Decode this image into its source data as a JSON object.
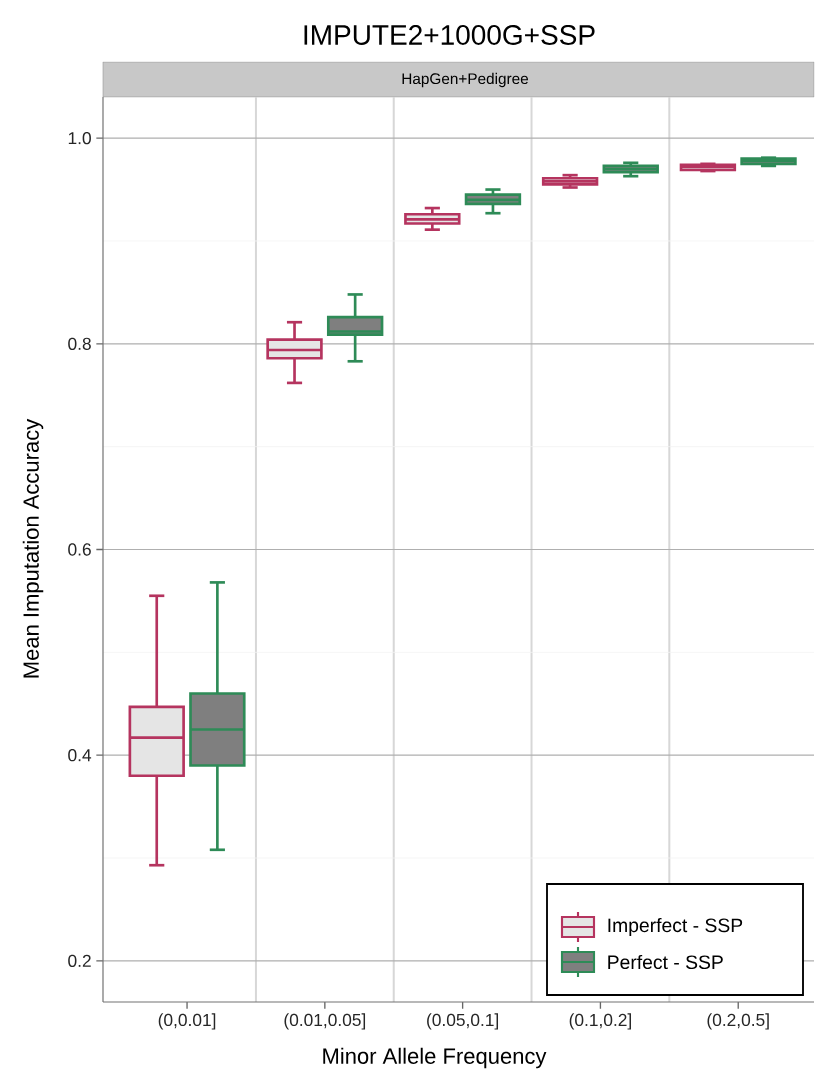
{
  "chart_data": {
    "type": "box",
    "title": "IMPUTE2+1000G+SSP",
    "subtitle": "HapGen+Pedigree",
    "xlabel": "Minor Allele Frequency",
    "ylabel": "Mean Imputation Accuracy",
    "categories": [
      "(0,0.01]",
      "(0.01,0.05]",
      "(0.05,0.1]",
      "(0.1,0.2]",
      "(0.2,0.5]"
    ],
    "series": [
      {
        "name": "Imperfect - SSP",
        "color": "#b5345f",
        "boxes": [
          {
            "low": 0.293,
            "q1": 0.38,
            "median": 0.417,
            "q3": 0.447,
            "high": 0.555
          },
          {
            "low": 0.762,
            "q1": 0.786,
            "median": 0.794,
            "q3": 0.804,
            "high": 0.821
          },
          {
            "low": 0.911,
            "q1": 0.917,
            "median": 0.921,
            "q3": 0.926,
            "high": 0.932
          },
          {
            "low": 0.952,
            "q1": 0.955,
            "median": 0.958,
            "q3": 0.961,
            "high": 0.964
          },
          {
            "low": 0.968,
            "q1": 0.969,
            "median": 0.972,
            "q3": 0.974,
            "high": 0.975
          }
        ]
      },
      {
        "name": "Perfect - SSP",
        "color": "#2e8b57",
        "boxes": [
          {
            "low": 0.308,
            "q1": 0.39,
            "median": 0.425,
            "q3": 0.46,
            "high": 0.568
          },
          {
            "low": 0.783,
            "q1": 0.809,
            "median": 0.812,
            "q3": 0.826,
            "high": 0.848
          },
          {
            "low": 0.927,
            "q1": 0.936,
            "median": 0.94,
            "q3": 0.945,
            "high": 0.95
          },
          {
            "low": 0.963,
            "q1": 0.967,
            "median": 0.97,
            "q3": 0.973,
            "high": 0.976
          },
          {
            "low": 0.973,
            "q1": 0.975,
            "median": 0.978,
            "q3": 0.98,
            "high": 0.981
          }
        ]
      }
    ],
    "ylim": [
      0.16,
      1.04
    ],
    "yticks": [
      0.2,
      0.4,
      0.6,
      0.8,
      {
        "value": 1.0,
        "label": "1.0"
      }
    ],
    "grid": true,
    "legend": "bottom right"
  }
}
